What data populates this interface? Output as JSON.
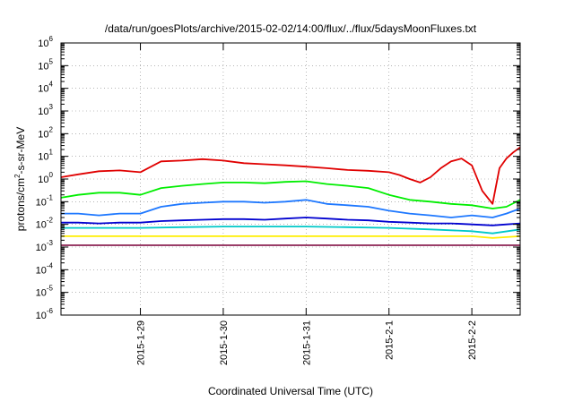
{
  "chart_data": {
    "type": "line",
    "title": "/data/run/goesPlots/archive/2015-02-02/14:00/flux/../flux/5daysMoonFluxes.txt",
    "xlabel": "Coordinated Universal Time (UTC)",
    "ylabel": {
      "base": "protons/cm",
      "sup": "2",
      "rest": "-s-sr-MeV"
    },
    "yscale": "log",
    "ylim": [
      1e-06,
      1000000.0
    ],
    "xlim": [
      "2015-01-28 01:00",
      "2015-02-02 14:00"
    ],
    "grid": true,
    "y_ticks": [
      {
        "value": 1e-06,
        "base": "10",
        "exp": "-6"
      },
      {
        "value": 1e-05,
        "base": "10",
        "exp": "-5"
      },
      {
        "value": 0.0001,
        "base": "10",
        "exp": "-4"
      },
      {
        "value": 0.001,
        "base": "10",
        "exp": "-3"
      },
      {
        "value": 0.01,
        "base": "10",
        "exp": "-2"
      },
      {
        "value": 0.1,
        "base": "10",
        "exp": "-1"
      },
      {
        "value": 1.0,
        "base": "10",
        "exp": "0"
      },
      {
        "value": 10.0,
        "base": "10",
        "exp": "1"
      },
      {
        "value": 100.0,
        "base": "10",
        "exp": "2"
      },
      {
        "value": 1000.0,
        "base": "10",
        "exp": "3"
      },
      {
        "value": 10000.0,
        "base": "10",
        "exp": "4"
      },
      {
        "value": 100000.0,
        "base": "10",
        "exp": "5"
      },
      {
        "value": 1000000.0,
        "base": "10",
        "exp": "6"
      }
    ],
    "x_ticks": [
      {
        "value": "2015-01-29 00:00",
        "label": "2015-1-29"
      },
      {
        "value": "2015-01-30 00:00",
        "label": "2015-1-30"
      },
      {
        "value": "2015-01-31 00:00",
        "label": "2015-1-31"
      },
      {
        "value": "2015-02-01 00:00",
        "label": "2015-2-1"
      },
      {
        "value": "2015-02-02 00:00",
        "label": "2015-2-2"
      }
    ],
    "series": [
      {
        "color": "#e00000",
        "x": [
          "2015-01-28 01:00",
          "2015-01-28 06:00",
          "2015-01-28 12:00",
          "2015-01-28 18:00",
          "2015-01-29 00:00",
          "2015-01-29 06:00",
          "2015-01-29 12:00",
          "2015-01-29 18:00",
          "2015-01-30 00:00",
          "2015-01-30 06:00",
          "2015-01-30 12:00",
          "2015-01-30 18:00",
          "2015-01-31 00:00",
          "2015-01-31 06:00",
          "2015-01-31 12:00",
          "2015-01-31 18:00",
          "2015-02-01 00:00",
          "2015-02-01 03:00",
          "2015-02-01 06:00",
          "2015-02-01 09:00",
          "2015-02-01 12:00",
          "2015-02-01 15:00",
          "2015-02-01 18:00",
          "2015-02-01 21:00",
          "2015-02-02 00:00",
          "2015-02-02 03:00",
          "2015-02-02 06:00",
          "2015-02-02 08:00",
          "2015-02-02 10:00",
          "2015-02-02 12:00",
          "2015-02-02 14:00"
        ],
        "values": [
          1.2,
          1.6,
          2.2,
          2.4,
          2.0,
          6.0,
          6.5,
          7.5,
          6.5,
          5.0,
          4.5,
          4.0,
          3.5,
          3.0,
          2.5,
          2.3,
          2.0,
          1.5,
          1.0,
          0.7,
          1.2,
          3.0,
          6.0,
          8.0,
          4.0,
          0.3,
          0.08,
          3.0,
          8.0,
          15.0,
          25.0
        ]
      },
      {
        "color": "#00ee00",
        "x": [
          "2015-01-28 01:00",
          "2015-01-28 06:00",
          "2015-01-28 12:00",
          "2015-01-28 18:00",
          "2015-01-29 00:00",
          "2015-01-29 06:00",
          "2015-01-29 12:00",
          "2015-01-29 18:00",
          "2015-01-30 00:00",
          "2015-01-30 06:00",
          "2015-01-30 12:00",
          "2015-01-30 18:00",
          "2015-01-31 00:00",
          "2015-01-31 06:00",
          "2015-01-31 12:00",
          "2015-01-31 18:00",
          "2015-02-01 00:00",
          "2015-02-01 06:00",
          "2015-02-01 12:00",
          "2015-02-01 18:00",
          "2015-02-02 00:00",
          "2015-02-02 06:00",
          "2015-02-02 10:00",
          "2015-02-02 14:00"
        ],
        "values": [
          0.15,
          0.2,
          0.25,
          0.25,
          0.2,
          0.4,
          0.5,
          0.6,
          0.7,
          0.7,
          0.65,
          0.75,
          0.8,
          0.6,
          0.5,
          0.4,
          0.2,
          0.12,
          0.1,
          0.08,
          0.07,
          0.05,
          0.06,
          0.12
        ]
      },
      {
        "color": "#1e78ff",
        "x": [
          "2015-01-28 01:00",
          "2015-01-28 06:00",
          "2015-01-28 12:00",
          "2015-01-28 18:00",
          "2015-01-29 00:00",
          "2015-01-29 06:00",
          "2015-01-29 12:00",
          "2015-01-29 18:00",
          "2015-01-30 00:00",
          "2015-01-30 06:00",
          "2015-01-30 12:00",
          "2015-01-30 18:00",
          "2015-01-31 00:00",
          "2015-01-31 06:00",
          "2015-01-31 12:00",
          "2015-01-31 18:00",
          "2015-02-01 00:00",
          "2015-02-01 06:00",
          "2015-02-01 12:00",
          "2015-02-01 18:00",
          "2015-02-02 00:00",
          "2015-02-02 06:00",
          "2015-02-02 10:00",
          "2015-02-02 14:00"
        ],
        "values": [
          0.03,
          0.03,
          0.025,
          0.03,
          0.03,
          0.06,
          0.08,
          0.09,
          0.1,
          0.1,
          0.09,
          0.1,
          0.12,
          0.08,
          0.07,
          0.06,
          0.04,
          0.03,
          0.025,
          0.02,
          0.025,
          0.02,
          0.03,
          0.05
        ]
      },
      {
        "color": "#0000d0",
        "x": [
          "2015-01-28 01:00",
          "2015-01-28 06:00",
          "2015-01-28 12:00",
          "2015-01-28 18:00",
          "2015-01-29 00:00",
          "2015-01-29 06:00",
          "2015-01-29 12:00",
          "2015-01-29 18:00",
          "2015-01-30 00:00",
          "2015-01-30 06:00",
          "2015-01-30 12:00",
          "2015-01-30 18:00",
          "2015-01-31 00:00",
          "2015-01-31 06:00",
          "2015-01-31 12:00",
          "2015-01-31 18:00",
          "2015-02-01 00:00",
          "2015-02-01 06:00",
          "2015-02-01 12:00",
          "2015-02-01 18:00",
          "2015-02-02 00:00",
          "2015-02-02 06:00",
          "2015-02-02 10:00",
          "2015-02-02 14:00"
        ],
        "values": [
          0.012,
          0.012,
          0.011,
          0.012,
          0.012,
          0.014,
          0.015,
          0.016,
          0.017,
          0.017,
          0.016,
          0.018,
          0.02,
          0.018,
          0.016,
          0.015,
          0.013,
          0.012,
          0.011,
          0.011,
          0.01,
          0.009,
          0.01,
          0.011
        ]
      },
      {
        "color": "#00c8c8",
        "x": [
          "2015-01-28 01:00",
          "2015-01-28 12:00",
          "2015-01-29 00:00",
          "2015-01-29 12:00",
          "2015-01-30 00:00",
          "2015-01-30 12:00",
          "2015-01-31 00:00",
          "2015-01-31 12:00",
          "2015-02-01 00:00",
          "2015-02-01 12:00",
          "2015-02-02 00:00",
          "2015-02-02 06:00",
          "2015-02-02 14:00"
        ],
        "values": [
          0.007,
          0.007,
          0.007,
          0.0075,
          0.008,
          0.008,
          0.008,
          0.0075,
          0.007,
          0.006,
          0.005,
          0.004,
          0.006
        ]
      },
      {
        "color": "#ffee00",
        "x": [
          "2015-01-28 01:00",
          "2015-01-28 12:00",
          "2015-01-29 00:00",
          "2015-01-29 12:00",
          "2015-01-30 00:00",
          "2015-01-30 12:00",
          "2015-01-31 00:00",
          "2015-01-31 12:00",
          "2015-02-01 00:00",
          "2015-02-01 12:00",
          "2015-02-02 00:00",
          "2015-02-02 06:00",
          "2015-02-02 14:00"
        ],
        "values": [
          0.003,
          0.003,
          0.003,
          0.003,
          0.003,
          0.003,
          0.003,
          0.003,
          0.003,
          0.003,
          0.003,
          0.0025,
          0.003
        ]
      },
      {
        "color": "#8b2252",
        "x": [
          "2015-01-28 01:00",
          "2015-01-28 12:00",
          "2015-01-29 00:00",
          "2015-01-29 12:00",
          "2015-01-30 00:00",
          "2015-01-30 12:00",
          "2015-01-31 00:00",
          "2015-01-31 12:00",
          "2015-02-01 00:00",
          "2015-02-01 12:00",
          "2015-02-02 00:00",
          "2015-02-02 06:00",
          "2015-02-02 14:00"
        ],
        "values": [
          0.0012,
          0.0012,
          0.0012,
          0.0012,
          0.0012,
          0.0012,
          0.0012,
          0.0012,
          0.0012,
          0.0012,
          0.0012,
          0.0012,
          0.0012
        ]
      }
    ]
  }
}
